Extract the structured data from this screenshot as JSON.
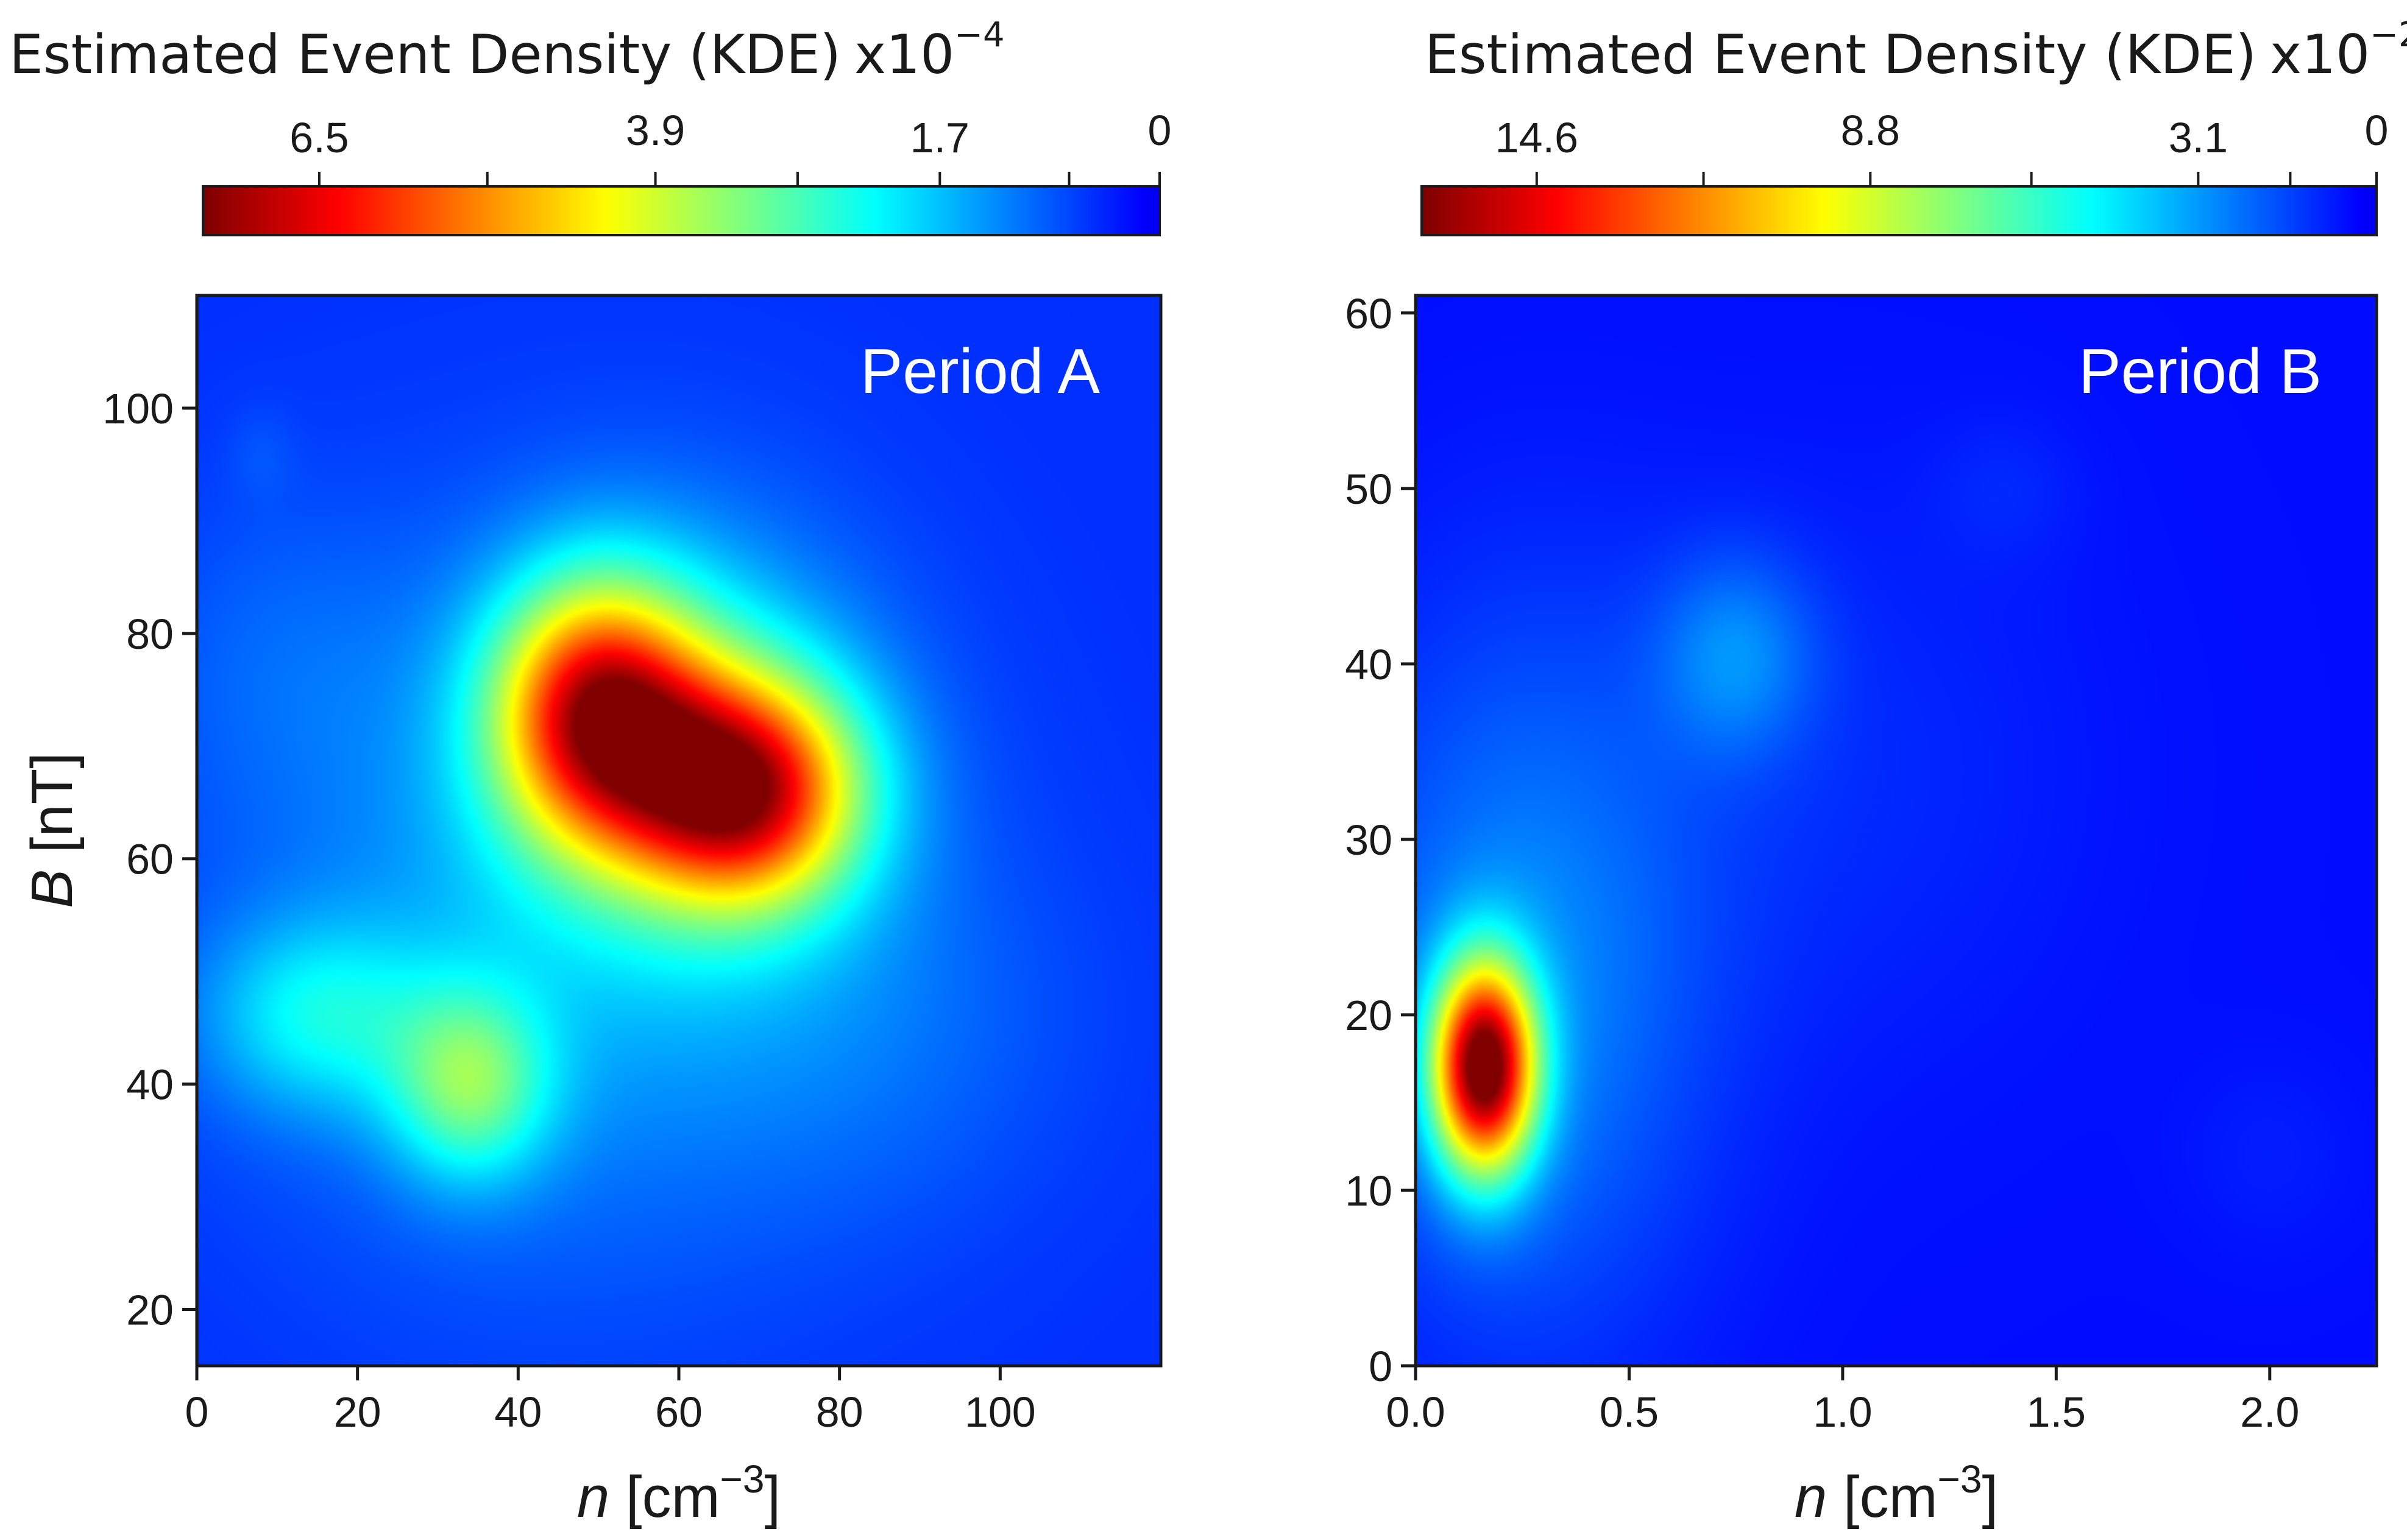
{
  "chart_data": [
    {
      "type": "heatmap",
      "panel_label": "Period A",
      "xlabel_var": "n",
      "xlabel_unit": " [cm",
      "xlabel_exp": "−3",
      "xlabel_close": "]",
      "ylabel_var": "B",
      "ylabel_unit": " [nT]",
      "xlim": [
        0,
        120
      ],
      "ylim": [
        15,
        110
      ],
      "xticks": [
        0,
        20,
        40,
        60,
        80,
        100
      ],
      "xtick_labels": [
        "0",
        "20",
        "40",
        "60",
        "80",
        "100"
      ],
      "yticks": [
        20,
        40,
        60,
        80,
        100
      ],
      "ytick_labels": [
        "20",
        "40",
        "60",
        "80",
        "100"
      ],
      "colorbar": {
        "title": "Estimated Event Density (KDE)",
        "scale_label": "x10",
        "scale_exp": "−4",
        "range": [
          7.4,
          0
        ],
        "labels": [
          {
            "value": 6.5,
            "label": "6.5"
          },
          {
            "value": 3.9,
            "label": "3.9"
          },
          {
            "value": 1.7,
            "label": "1.7"
          },
          {
            "value": 0,
            "label": "0"
          }
        ],
        "minor_ticks": [
          6.5,
          5.2,
          3.9,
          2.8,
          1.7,
          0.7,
          0
        ]
      },
      "background_density": 0.5,
      "kde_components": [
        {
          "x": 50,
          "y": 73,
          "sx": 9,
          "sy": 8,
          "amp": 5.1
        },
        {
          "x": 68,
          "y": 66,
          "sx": 10,
          "sy": 7,
          "amp": 5.3
        },
        {
          "x": 60,
          "y": 70,
          "sx": 16,
          "sy": 13,
          "amp": 1.4
        },
        {
          "x": 34,
          "y": 40,
          "sx": 7,
          "sy": 6,
          "amp": 2.2
        },
        {
          "x": 15,
          "y": 46,
          "sx": 10,
          "sy": 6,
          "amp": 1.4
        },
        {
          "x": 45,
          "y": 55,
          "sx": 28,
          "sy": 22,
          "amp": 0.9
        },
        {
          "x": 10,
          "y": 78,
          "sx": 12,
          "sy": 10,
          "amp": 0.3
        },
        {
          "x": 8,
          "y": 96,
          "sx": 3,
          "sy": 3,
          "amp": 0.2
        },
        {
          "x": 85,
          "y": 45,
          "sx": 18,
          "sy": 12,
          "amp": 0.35
        }
      ]
    },
    {
      "type": "heatmap",
      "panel_label": "Period B",
      "xlabel_var": "n",
      "xlabel_unit": " [cm",
      "xlabel_exp": "−3",
      "xlabel_close": "]",
      "xlim": [
        0,
        2.25
      ],
      "ylim": [
        0,
        61
      ],
      "xticks": [
        0,
        0.5,
        1.0,
        1.5,
        2.0
      ],
      "xtick_labels": [
        "0.0",
        "0.5",
        "1.0",
        "1.5",
        "2.0"
      ],
      "yticks": [
        0,
        10,
        20,
        30,
        40,
        50,
        60
      ],
      "ytick_labels": [
        "0",
        "10",
        "20",
        "30",
        "40",
        "50",
        "60"
      ],
      "colorbar": {
        "title": "Estimated Event Density (KDE)",
        "scale_label": "x10",
        "scale_exp": "−2",
        "range": [
          16.6,
          0
        ],
        "labels": [
          {
            "value": 14.6,
            "label": "14.6"
          },
          {
            "value": 8.8,
            "label": "8.8"
          },
          {
            "value": 3.1,
            "label": "3.1"
          },
          {
            "value": 0,
            "label": "0"
          }
        ],
        "minor_ticks": [
          14.6,
          11.7,
          8.8,
          6.0,
          3.1,
          1.5,
          0
        ]
      },
      "background_density": 0.5,
      "kde_components": [
        {
          "x": 0.16,
          "y": 17,
          "sx": 0.085,
          "sy": 4.2,
          "amp": 15.5
        },
        {
          "x": 0.25,
          "y": 22,
          "sx": 0.3,
          "sy": 14,
          "amp": 2.3
        },
        {
          "x": 0.75,
          "y": 40.5,
          "sx": 0.13,
          "sy": 4,
          "amp": 2.0
        },
        {
          "x": 1.0,
          "y": 34,
          "sx": 0.4,
          "sy": 12,
          "amp": 0.5
        },
        {
          "x": 1.38,
          "y": 50,
          "sx": 0.12,
          "sy": 3,
          "amp": 0.4
        },
        {
          "x": 2.0,
          "y": 12,
          "sx": 0.15,
          "sy": 4,
          "amp": 0.3
        }
      ]
    }
  ]
}
